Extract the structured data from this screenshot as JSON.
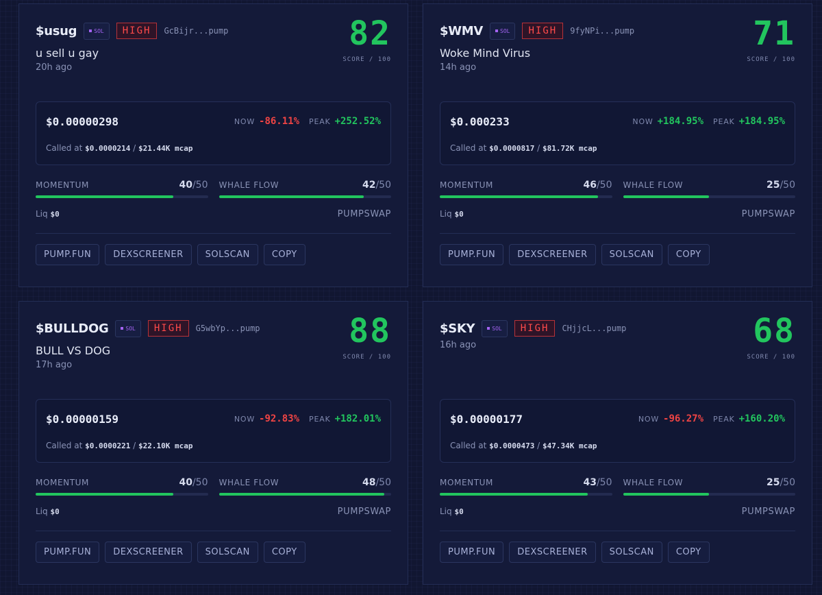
{
  "cards": [
    {
      "ticker": "$usug",
      "chain": "SOL",
      "risk": "HIGH",
      "address": "GcBijr...pump",
      "score": 82,
      "score_label": "SCORE / 100",
      "description": "u sell u gay",
      "age": "20h ago",
      "price": "$0.00000298",
      "now_label": "NOW",
      "now_change": "-86.11%",
      "peak_label": "PEAK",
      "peak_change": "+252.52%",
      "called_label": "Called at",
      "called_price": "$0.0000214",
      "separator": "/",
      "called_mcap": "$21.44K mcap",
      "metrics": [
        {
          "label": "MOMENTUM",
          "value": 40,
          "max": 50,
          "max_label": "/50"
        },
        {
          "label": "WHALE FLOW",
          "value": 42,
          "max": 50,
          "max_label": "/50"
        }
      ],
      "liq_label": "Liq",
      "liq": "$0",
      "venue": "PUMPSWAP",
      "links": [
        "PUMP.FUN",
        "DEXSCREENER",
        "SOLSCAN",
        "COPY"
      ]
    },
    {
      "ticker": "$WMV",
      "chain": "SOL",
      "risk": "HIGH",
      "address": "9fyNPi...pump",
      "score": 71,
      "score_label": "SCORE / 100",
      "description": "Woke Mind Virus",
      "age": "14h ago",
      "price": "$0.000233",
      "now_label": "NOW",
      "now_change": "+184.95%",
      "peak_label": "PEAK",
      "peak_change": "+184.95%",
      "called_label": "Called at",
      "called_price": "$0.0000817",
      "separator": "/",
      "called_mcap": "$81.72K mcap",
      "metrics": [
        {
          "label": "MOMENTUM",
          "value": 46,
          "max": 50,
          "max_label": "/50"
        },
        {
          "label": "WHALE FLOW",
          "value": 25,
          "max": 50,
          "max_label": "/50"
        }
      ],
      "liq_label": "Liq",
      "liq": "$0",
      "venue": "PUMPSWAP",
      "links": [
        "PUMP.FUN",
        "DEXSCREENER",
        "SOLSCAN",
        "COPY"
      ]
    },
    {
      "ticker": "$BULLDOG",
      "chain": "SOL",
      "risk": "HIGH",
      "address": "G5wbYp...pump",
      "score": 88,
      "score_label": "SCORE / 100",
      "description": "BULL VS DOG",
      "age": "17h ago",
      "price": "$0.00000159",
      "now_label": "NOW",
      "now_change": "-92.83%",
      "peak_label": "PEAK",
      "peak_change": "+182.01%",
      "called_label": "Called at",
      "called_price": "$0.0000221",
      "separator": "/",
      "called_mcap": "$22.10K mcap",
      "metrics": [
        {
          "label": "MOMENTUM",
          "value": 40,
          "max": 50,
          "max_label": "/50"
        },
        {
          "label": "WHALE FLOW",
          "value": 48,
          "max": 50,
          "max_label": "/50"
        }
      ],
      "liq_label": "Liq",
      "liq": "$0",
      "venue": "PUMPSWAP",
      "links": [
        "PUMP.FUN",
        "DEXSCREENER",
        "SOLSCAN",
        "COPY"
      ]
    },
    {
      "ticker": "$SKY",
      "chain": "SOL",
      "risk": "HIGH",
      "address": "CHjjcL...pump",
      "score": 68,
      "score_label": "SCORE / 100",
      "age": "16h ago",
      "price": "$0.00000177",
      "now_label": "NOW",
      "now_change": "-96.27%",
      "peak_label": "PEAK",
      "peak_change": "+160.20%",
      "called_label": "Called at",
      "called_price": "$0.0000473",
      "separator": "/",
      "called_mcap": "$47.34K mcap",
      "metrics": [
        {
          "label": "MOMENTUM",
          "value": 43,
          "max": 50,
          "max_label": "/50"
        },
        {
          "label": "WHALE FLOW",
          "value": 25,
          "max": 50,
          "max_label": "/50"
        }
      ],
      "liq_label": "Liq",
      "liq": "$0",
      "venue": "PUMPSWAP",
      "links": [
        "PUMP.FUN",
        "DEXSCREENER",
        "SOLSCAN",
        "COPY"
      ]
    }
  ]
}
